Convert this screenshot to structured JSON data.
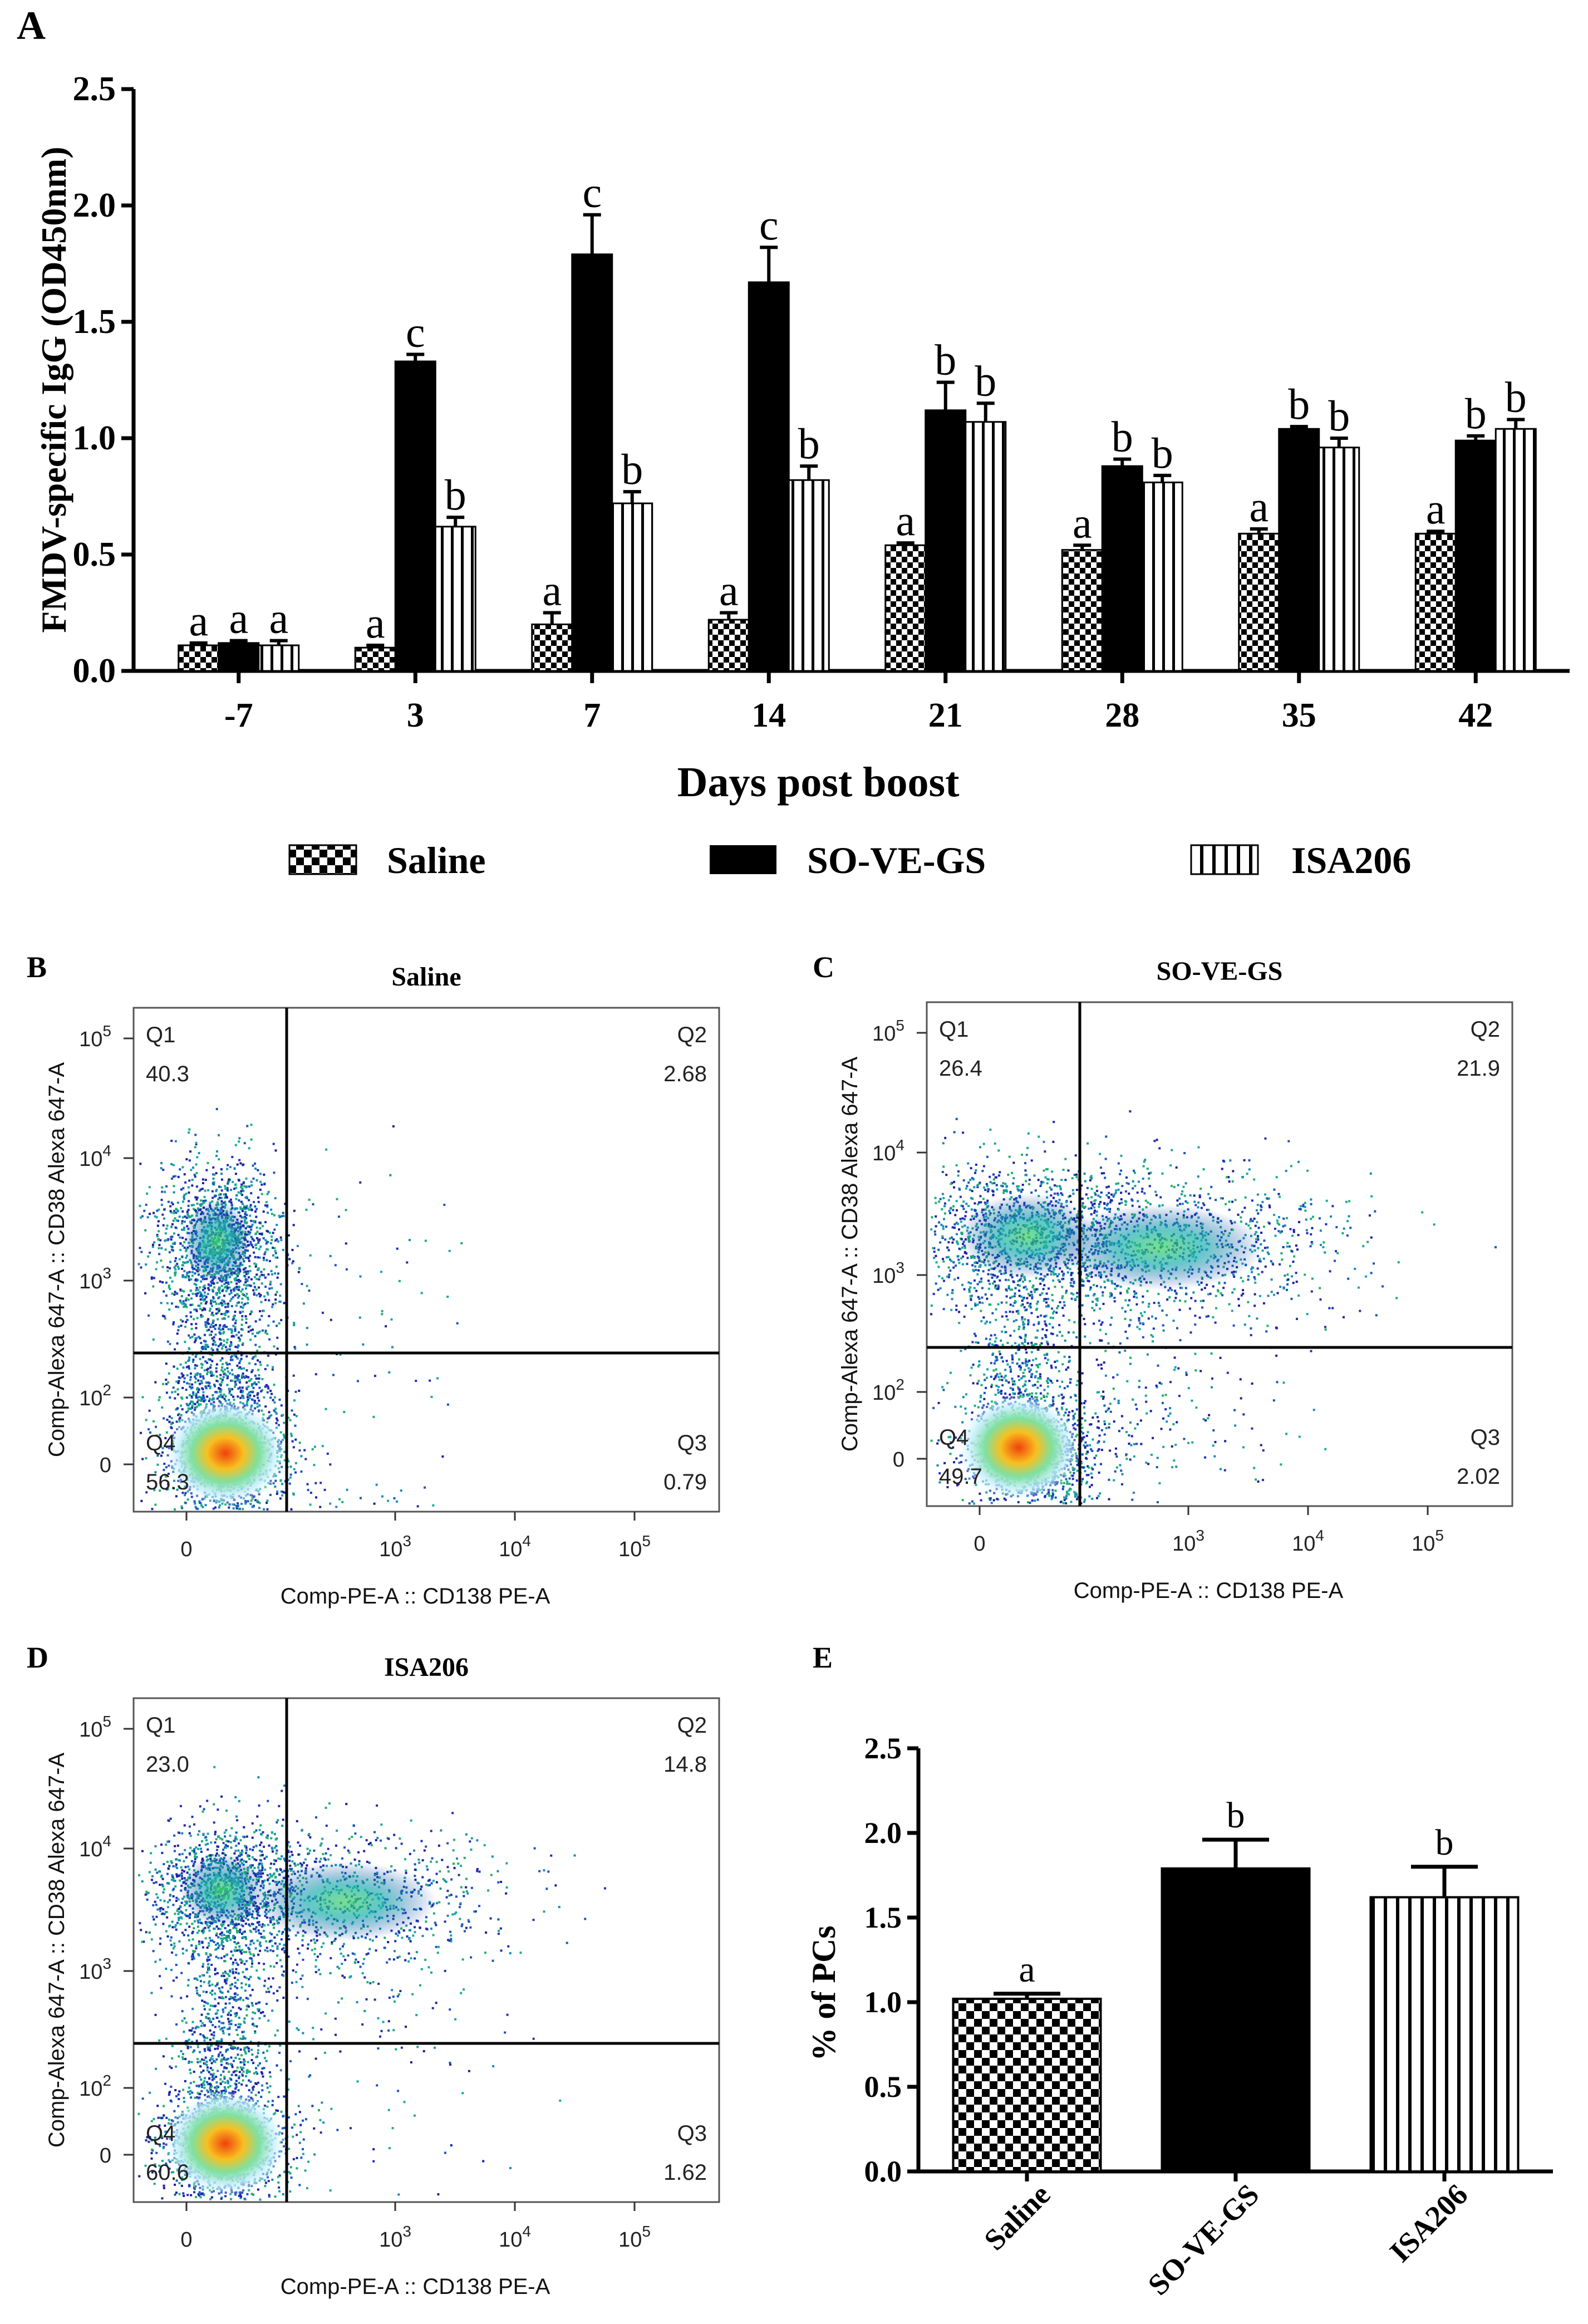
{
  "panels": {
    "A": "A",
    "B": "B",
    "C": "C",
    "D": "D",
    "E": "E"
  },
  "chart_data": [
    {
      "id": "A",
      "type": "bar",
      "title": "",
      "xlabel": "Days post boost",
      "ylabel": "FMDV-specific IgG (OD450nm)",
      "ylim": [
        0,
        2.5
      ],
      "yticks": [
        "0.0",
        "0.5",
        "1.0",
        "1.5",
        "2.0",
        "2.5"
      ],
      "ytick_values": [
        0,
        0.5,
        1.0,
        1.5,
        2.0,
        2.5
      ],
      "categories": [
        "-7",
        "3",
        "7",
        "14",
        "21",
        "28",
        "35",
        "42"
      ],
      "legend": [
        "Saline",
        "SO-VE-GS",
        "ISA206"
      ],
      "series": [
        {
          "name": "Saline",
          "pattern": "checker",
          "values": [
            0.11,
            0.1,
            0.2,
            0.22,
            0.54,
            0.52,
            0.59,
            0.59
          ],
          "errors": [
            0.01,
            0.01,
            0.05,
            0.03,
            0.01,
            0.02,
            0.02,
            0.01
          ],
          "letters": [
            "a",
            "a",
            "a",
            "a",
            "a",
            "a",
            "a",
            "a"
          ]
        },
        {
          "name": "SO-VE-GS",
          "pattern": "solid",
          "values": [
            0.12,
            1.33,
            1.79,
            1.67,
            1.12,
            0.88,
            1.04,
            0.99
          ],
          "errors": [
            0.01,
            0.03,
            0.17,
            0.15,
            0.12,
            0.03,
            0.01,
            0.02
          ],
          "letters": [
            "a",
            "c",
            "c",
            "c",
            "b",
            "b",
            "b",
            "b"
          ]
        },
        {
          "name": "ISA206",
          "pattern": "vstripe",
          "values": [
            0.11,
            0.62,
            0.72,
            0.82,
            1.07,
            0.81,
            0.96,
            1.04
          ],
          "errors": [
            0.02,
            0.04,
            0.05,
            0.06,
            0.08,
            0.03,
            0.04,
            0.04
          ],
          "letters": [
            "a",
            "b",
            "b",
            "b",
            "b",
            "b",
            "b",
            "b"
          ]
        }
      ]
    },
    {
      "id": "E",
      "type": "bar",
      "title": "",
      "xlabel": "",
      "ylabel": "% of PCs",
      "ylim": [
        0,
        2.5
      ],
      "yticks": [
        "0.0",
        "0.5",
        "1.0",
        "1.5",
        "2.0",
        "2.5"
      ],
      "ytick_values": [
        0,
        0.5,
        1.0,
        1.5,
        2.0,
        2.5
      ],
      "categories": [
        "Saline",
        "SO-VE-GS",
        "ISA206"
      ],
      "patterns": [
        "checker",
        "solid",
        "vstripe"
      ],
      "values": [
        1.02,
        1.79,
        1.62
      ],
      "errors": [
        0.03,
        0.17,
        0.18
      ],
      "letters": [
        "a",
        "b",
        "b"
      ]
    }
  ],
  "flow_plots": [
    {
      "id": "B",
      "title": "Saline",
      "y_label": "Comp-Alexa 647-A :: CD38 Alexa 647-A",
      "x_label": "Comp-PE-A :: CD138 PE-A",
      "quadrants": {
        "Q1": "40.3",
        "Q2": "2.68",
        "Q3": "0.79",
        "Q4": "56.3"
      },
      "xticks": [
        "0",
        "10",
        "10",
        "10"
      ],
      "xtick_exp": [
        "",
        "3",
        "4",
        "5"
      ],
      "yticks": [
        "0",
        "10",
        "10",
        "10",
        "10"
      ],
      "ytick_exp": [
        "",
        "2",
        "3",
        "4",
        "5"
      ]
    },
    {
      "id": "C",
      "title": "SO-VE-GS",
      "y_label": "Comp-Alexa 647-A :: CD38 Alexa 647-A",
      "x_label": "Comp-PE-A :: CD138 PE-A",
      "quadrants": {
        "Q1": "26.4",
        "Q2": "21.9",
        "Q3": "2.02",
        "Q4": "49.7"
      },
      "xticks": [
        "0",
        "10",
        "10",
        "10"
      ],
      "xtick_exp": [
        "",
        "3",
        "4",
        "5"
      ],
      "yticks": [
        "0",
        "10",
        "10",
        "10",
        "10"
      ],
      "ytick_exp": [
        "",
        "2",
        "3",
        "4",
        "5"
      ]
    },
    {
      "id": "D",
      "title": "ISA206",
      "y_label": "Comp-Alexa 647-A :: CD38 Alexa 647-A",
      "x_label": "Comp-PE-A :: CD138 PE-A",
      "quadrants": {
        "Q1": "23.0",
        "Q2": "14.8",
        "Q3": "1.62",
        "Q4": "60.6"
      },
      "xticks": [
        "0",
        "10",
        "10",
        "10"
      ],
      "xtick_exp": [
        "",
        "3",
        "4",
        "5"
      ],
      "yticks": [
        "0",
        "10",
        "10",
        "10",
        "10"
      ],
      "ytick_exp": [
        "",
        "2",
        "3",
        "4",
        "5"
      ]
    }
  ],
  "colors": {
    "bar_dark": "#000000",
    "bar_light": "#ffffff",
    "density_low": "#1a1aa8",
    "density_mid": "#21b2a0",
    "density_high": "#f04a10"
  }
}
